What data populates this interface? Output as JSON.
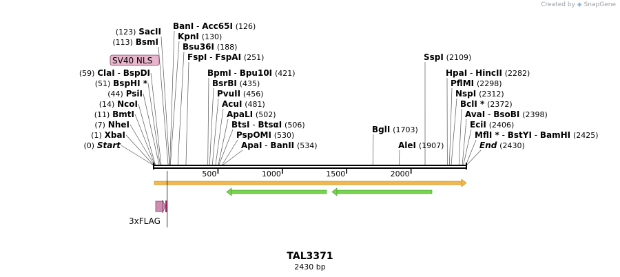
{
  "credit": {
    "prefix": "Created by",
    "brand": "SnapGene"
  },
  "plasmid": {
    "name": "TAL3371",
    "length": "2430 bp",
    "bp": 2430
  },
  "ruler": {
    "ticks": [
      500,
      1000,
      1500,
      2000
    ]
  },
  "features": [
    {
      "name": "SV40 NLS",
      "type": "label-box",
      "color": "#e8b5cc"
    },
    {
      "name": "3xFLAG",
      "type": "arrow",
      "color": "#d08cb0"
    },
    {
      "name": "",
      "type": "orf",
      "color": "#f2b84b"
    },
    {
      "name": "",
      "type": "orf",
      "color": "#7ad34f"
    },
    {
      "name": "",
      "type": "orf",
      "color": "#7ad34f"
    }
  ],
  "sites": [
    {
      "parts": [
        "SacII"
      ],
      "pos": "(123)",
      "bp": 123
    },
    {
      "parts": [
        "BsmI"
      ],
      "pos": "(113)",
      "bp": 113
    },
    {
      "parts": [
        "ClaI",
        "BspDI"
      ],
      "pos": "(59)",
      "bp": 59
    },
    {
      "parts": [
        "BspHI *"
      ],
      "pos": "(51)",
      "bp": 51
    },
    {
      "parts": [
        "PsiI"
      ],
      "pos": "(44)",
      "bp": 44
    },
    {
      "parts": [
        "NcoI"
      ],
      "pos": "(14)",
      "bp": 14
    },
    {
      "parts": [
        "BmtI"
      ],
      "pos": "(11)",
      "bp": 11
    },
    {
      "parts": [
        "NheI"
      ],
      "pos": "(7)",
      "bp": 7
    },
    {
      "parts": [
        "XbaI"
      ],
      "pos": "(1)",
      "bp": 1
    },
    {
      "parts": [
        "Start"
      ],
      "pos": "(0)",
      "bp": 0,
      "italic": true
    },
    {
      "parts": [
        "BanI",
        "Acc65I"
      ],
      "pos": "(126)",
      "bp": 126
    },
    {
      "parts": [
        "KpnI"
      ],
      "pos": "(130)",
      "bp": 130
    },
    {
      "parts": [
        "Bsu36I"
      ],
      "pos": "(188)",
      "bp": 188
    },
    {
      "parts": [
        "FspI",
        "FspAI"
      ],
      "pos": "(251)",
      "bp": 251
    },
    {
      "parts": [
        "BpmI",
        "Bpu10I"
      ],
      "pos": "(421)",
      "bp": 421
    },
    {
      "parts": [
        "BsrBI"
      ],
      "pos": "(435)",
      "bp": 435
    },
    {
      "parts": [
        "PvuII"
      ],
      "pos": "(456)",
      "bp": 456
    },
    {
      "parts": [
        "AcuI"
      ],
      "pos": "(481)",
      "bp": 481
    },
    {
      "parts": [
        "ApaLI"
      ],
      "pos": "(502)",
      "bp": 502
    },
    {
      "parts": [
        "BtsI",
        "BtsαI"
      ],
      "pos": "(506)",
      "bp": 506
    },
    {
      "parts": [
        "PspOMI"
      ],
      "pos": "(530)",
      "bp": 530
    },
    {
      "parts": [
        "ApaI",
        "BanII"
      ],
      "pos": "(534)",
      "bp": 534
    },
    {
      "parts": [
        "BglI"
      ],
      "pos": "(1703)",
      "bp": 1703
    },
    {
      "parts": [
        "AleI"
      ],
      "pos": "(1907)",
      "bp": 1907
    },
    {
      "parts": [
        "SspI"
      ],
      "pos": "(2109)",
      "bp": 2109
    },
    {
      "parts": [
        "HpaI",
        "HincII"
      ],
      "pos": "(2282)",
      "bp": 2282
    },
    {
      "parts": [
        "PflMI"
      ],
      "pos": "(2298)",
      "bp": 2298
    },
    {
      "parts": [
        "NspI"
      ],
      "pos": "(2312)",
      "bp": 2312
    },
    {
      "parts": [
        "BclI *"
      ],
      "pos": "(2372)",
      "bp": 2372
    },
    {
      "parts": [
        "AvaI",
        "BsoBI"
      ],
      "pos": "(2398)",
      "bp": 2398
    },
    {
      "parts": [
        "EciI"
      ],
      "pos": "(2406)",
      "bp": 2406
    },
    {
      "parts": [
        "MflI *",
        "BstYI",
        "BamHI"
      ],
      "pos": "(2425)",
      "bp": 2425
    },
    {
      "parts": [
        "End"
      ],
      "pos": "(2430)",
      "bp": 2430,
      "italic": true
    }
  ]
}
